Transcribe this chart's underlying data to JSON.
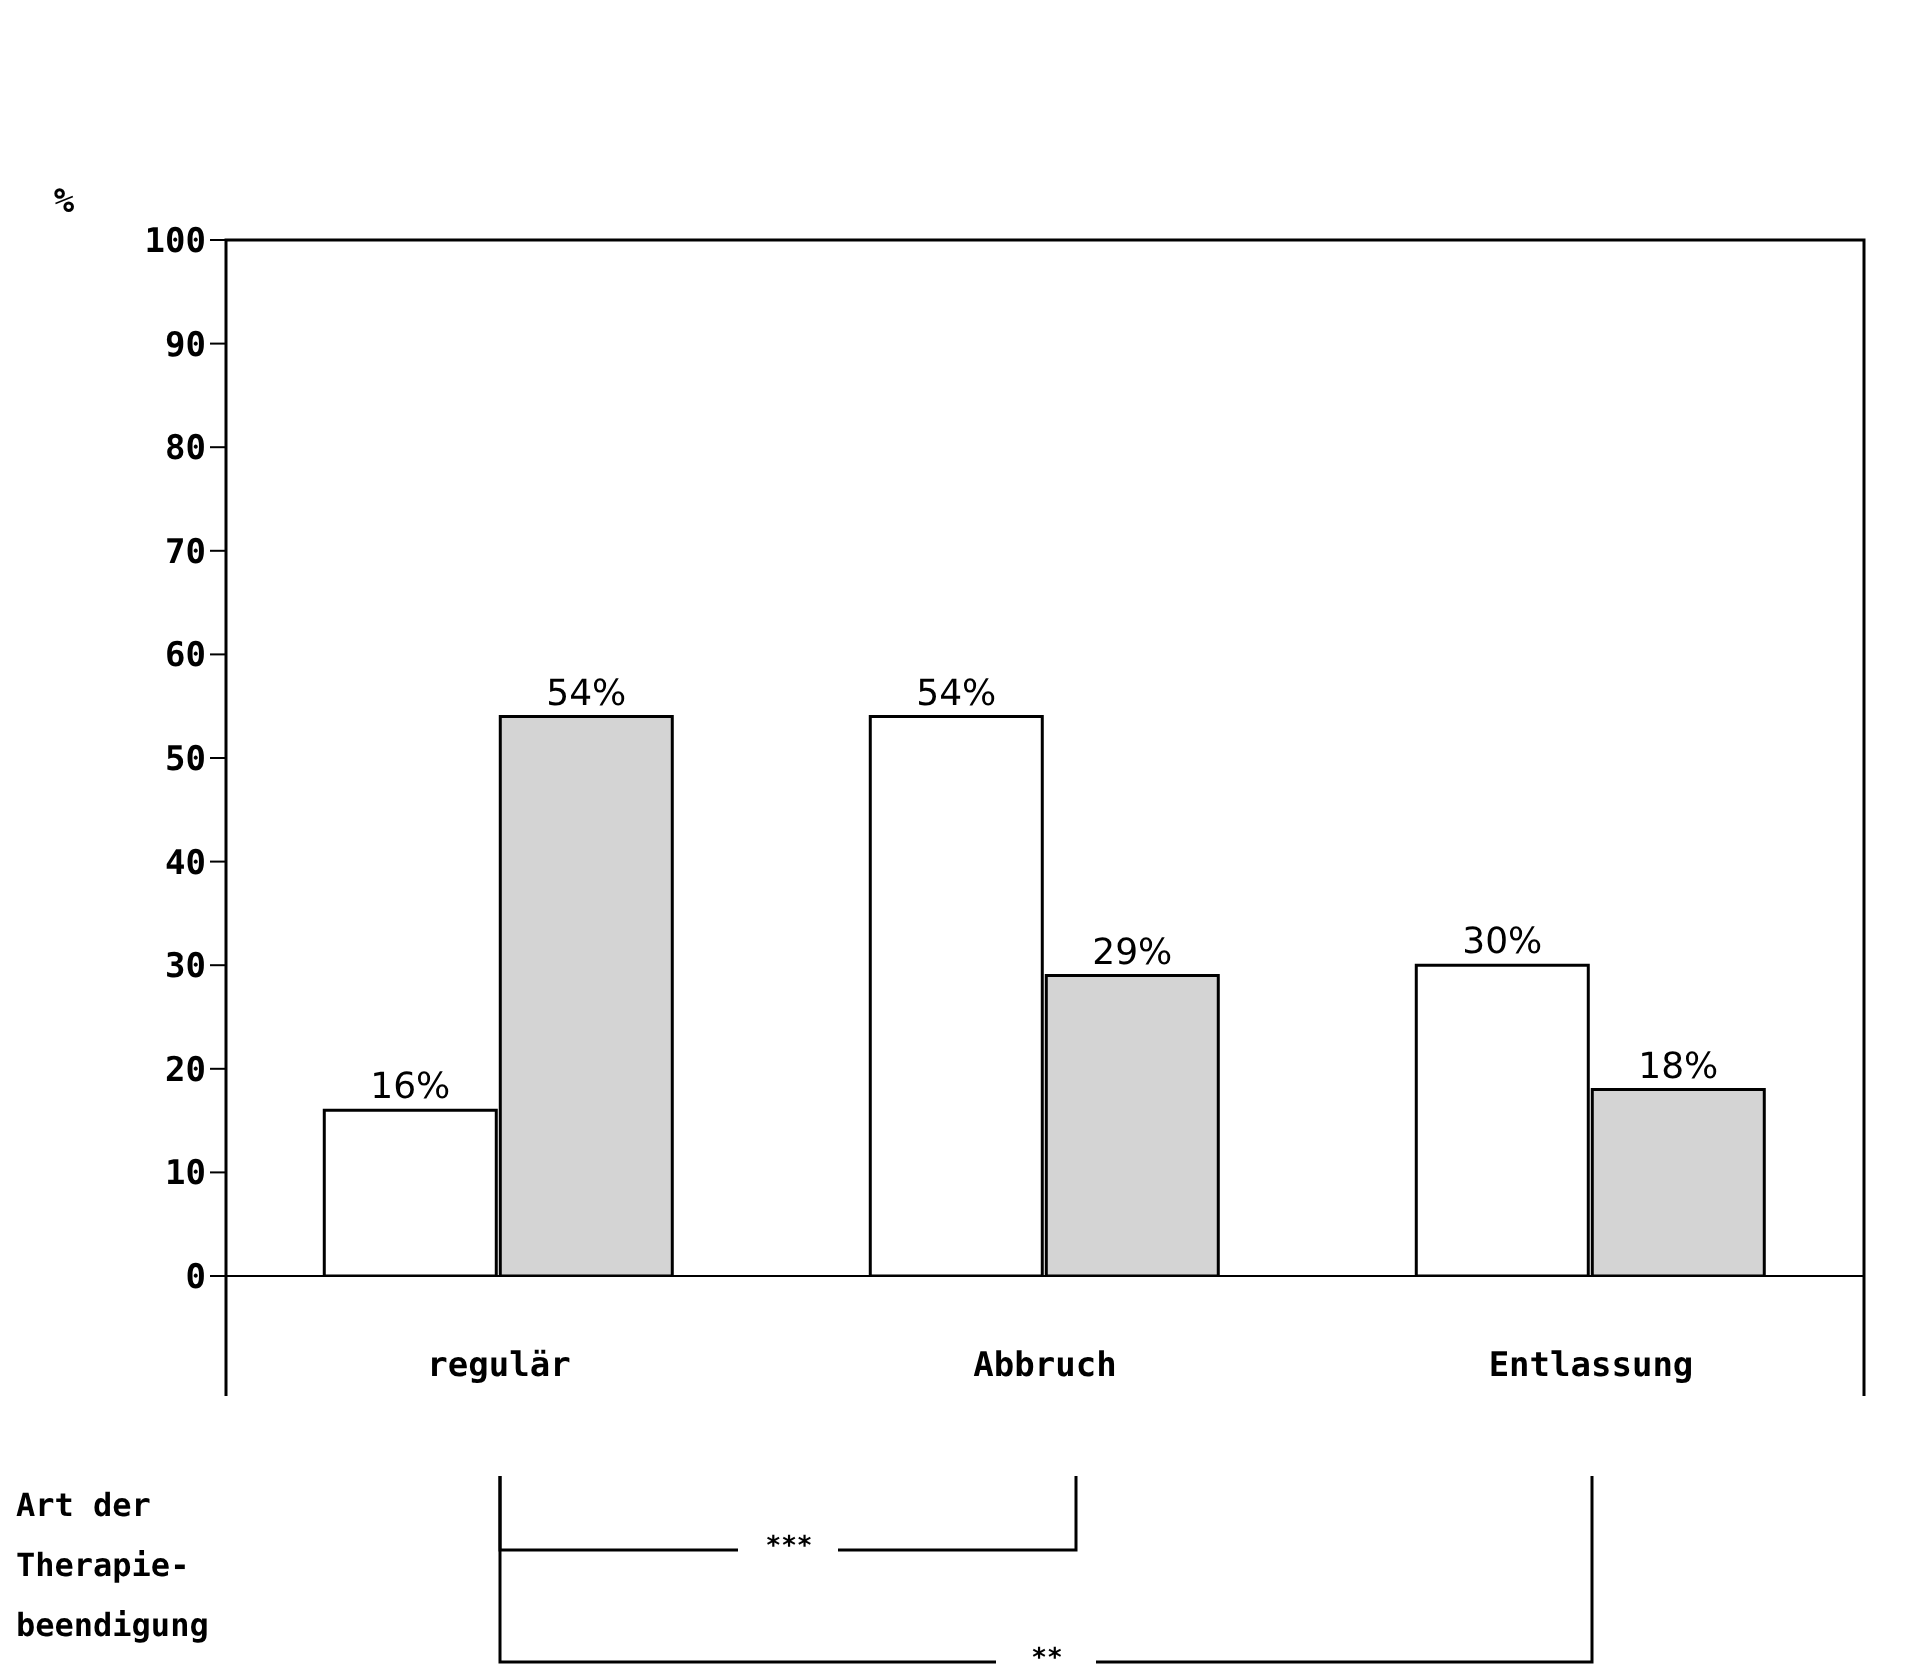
{
  "chart_data": {
    "type": "bar",
    "ylabel": "%",
    "xlabel": "Art der Therapie-beendigung",
    "categories": [
      "regulär",
      "Abbruch",
      "Entlassung"
    ],
    "series": [
      {
        "color": "#ffffff",
        "values": [
          16,
          54,
          30
        ],
        "value_labels": [
          "16%",
          "54%",
          "30%"
        ]
      },
      {
        "color": "#d4d4d4",
        "values": [
          54,
          29,
          18
        ],
        "value_labels": [
          "54%",
          "29%",
          "18%"
        ]
      }
    ],
    "ylim": [
      0,
      100
    ],
    "yticks": [
      0,
      10,
      20,
      30,
      40,
      50,
      60,
      70,
      80,
      90,
      100
    ],
    "annotations": [
      "***",
      "**"
    ]
  }
}
